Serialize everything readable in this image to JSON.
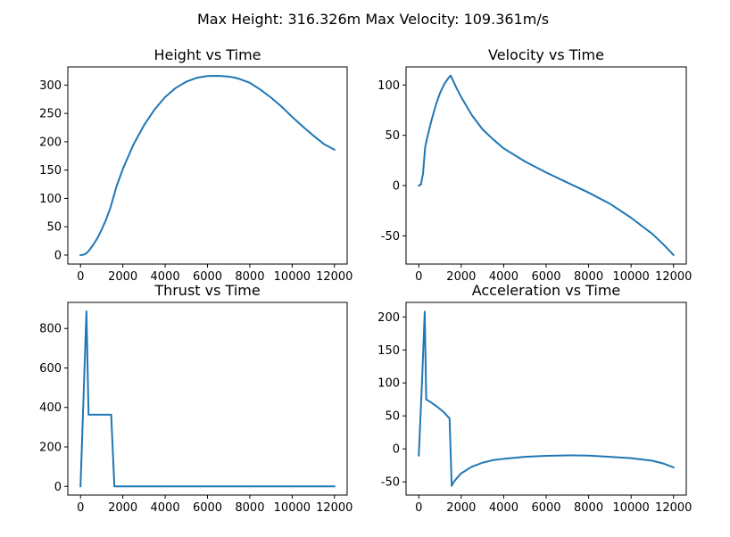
{
  "figure": {
    "suptitle": "Max Height: 316.326m Max Velocity: 109.361m/s",
    "line_color": "#1f77b4"
  },
  "chart_data": [
    {
      "type": "line",
      "title": "Height vs Time",
      "xlim": [
        -600,
        12600
      ],
      "ylim": [
        -15.8,
        332.1
      ],
      "xticks": [
        0,
        2000,
        4000,
        6000,
        8000,
        10000,
        12000
      ],
      "yticks": [
        0,
        50,
        100,
        150,
        200,
        250,
        300
      ],
      "series": [
        {
          "x": [
            0,
            100,
            200,
            300,
            400,
            600,
            800,
            1000,
            1200,
            1400,
            1500,
            1700,
            2000,
            2500,
            3000,
            3500,
            4000,
            4500,
            5000,
            5500,
            6000,
            6500,
            7000,
            7300,
            7500,
            8000,
            8500,
            9000,
            9500,
            10000,
            10500,
            11000,
            11500,
            12000
          ],
          "y": [
            0,
            0.3,
            1.5,
            4,
            8,
            18,
            30,
            45,
            62,
            82,
            95,
            121,
            152,
            195,
            229,
            257,
            279,
            295,
            306,
            313,
            316,
            316.3,
            315,
            313,
            311,
            304,
            292,
            278,
            262,
            244,
            227,
            211,
            196,
            186
          ]
        }
      ]
    },
    {
      "type": "line",
      "title": "Velocity vs Time",
      "xlim": [
        -600,
        12600
      ],
      "ylim": [
        -78,
        118
      ],
      "xticks": [
        0,
        2000,
        4000,
        6000,
        8000,
        10000,
        12000
      ],
      "yticks": [
        -50,
        0,
        50,
        100
      ],
      "series": [
        {
          "x": [
            0,
            100,
            200,
            300,
            400,
            600,
            800,
            1000,
            1200,
            1400,
            1500,
            1600,
            1800,
            2000,
            2500,
            3000,
            3500,
            4000,
            5000,
            6000,
            7000,
            7300,
            8000,
            9000,
            10000,
            10500,
            11000,
            11500,
            12000
          ],
          "y": [
            0,
            1,
            12,
            38,
            48,
            65,
            80,
            92,
            101,
            107,
            109.4,
            105,
            96,
            88,
            70,
            56,
            46,
            37,
            24,
            13,
            3,
            0,
            -7,
            -18,
            -32,
            -40,
            -48,
            -58,
            -69
          ]
        }
      ]
    },
    {
      "type": "line",
      "title": "Thrust vs Time",
      "xlim": [
        -600,
        12600
      ],
      "ylim": [
        -44,
        932
      ],
      "xticks": [
        0,
        2000,
        4000,
        6000,
        8000,
        10000,
        12000
      ],
      "yticks": [
        0,
        200,
        400,
        600,
        800
      ],
      "series": [
        {
          "x": [
            0,
            280,
            380,
            1450,
            1600,
            12000
          ],
          "y": [
            0,
            887,
            363,
            363,
            0,
            0
          ]
        }
      ]
    },
    {
      "type": "line",
      "title": "Acceleration vs Time",
      "xlim": [
        -600,
        12600
      ],
      "ylim": [
        -70,
        222
      ],
      "xticks": [
        0,
        2000,
        4000,
        6000,
        8000,
        10000,
        12000
      ],
      "yticks": [
        -50,
        0,
        50,
        100,
        150,
        200
      ],
      "series": [
        {
          "x": [
            0,
            150,
            280,
            350,
            600,
            900,
            1200,
            1450,
            1550,
            1650,
            1800,
            2000,
            2500,
            3000,
            3500,
            4000,
            5000,
            6000,
            7000,
            7300,
            8000,
            9000,
            10000,
            11000,
            11500,
            12000
          ],
          "y": [
            -10,
            100,
            208,
            75,
            70,
            63,
            55,
            46,
            -56,
            -50,
            -44,
            -37,
            -27,
            -21,
            -17,
            -15,
            -12,
            -10.5,
            -9.8,
            -9.8,
            -10.2,
            -12,
            -14,
            -18,
            -22,
            -28
          ]
        }
      ]
    }
  ]
}
